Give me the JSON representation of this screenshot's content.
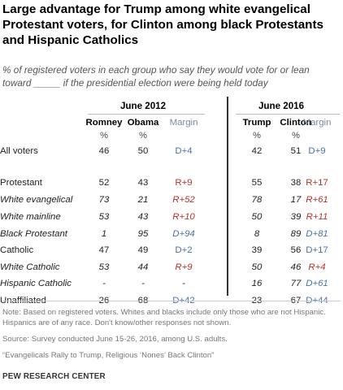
{
  "title": "Large advantage for Trump among white evangelical Protestant voters, for Clinton among black Protestants and Hispanic Catholics",
  "subtitle": "% of registered voters in each group who say they would vote for or lean toward _____ if the presidential election were being held today",
  "chart_data": {
    "type": "table",
    "years": [
      "June 2012",
      "June 2016"
    ],
    "columns": [
      {
        "label": "Romney",
        "unit": "%"
      },
      {
        "label": "Obama",
        "unit": "%"
      },
      {
        "label": "Margin",
        "unit": ""
      },
      {
        "label": "Trump",
        "unit": "%"
      },
      {
        "label": "Clinton",
        "unit": "%"
      },
      {
        "label": "Margin",
        "unit": ""
      }
    ],
    "rows": [
      {
        "label": "All voters",
        "italic": false,
        "values": [
          "46",
          "50",
          "D+4",
          "42",
          "51",
          "D+9"
        ]
      },
      {
        "label": "Protestant",
        "italic": false,
        "values": [
          "52",
          "43",
          "R+9",
          "55",
          "38",
          "R+17"
        ]
      },
      {
        "label": "White evangelical",
        "italic": true,
        "values": [
          "73",
          "21",
          "R+52",
          "78",
          "17",
          "R+61"
        ]
      },
      {
        "label": "White mainline",
        "italic": true,
        "values": [
          "53",
          "43",
          "R+10",
          "50",
          "39",
          "R+11"
        ]
      },
      {
        "label": "Black Protestant",
        "italic": true,
        "values": [
          "1",
          "95",
          "D+94",
          "8",
          "89",
          "D+81"
        ]
      },
      {
        "label": "Catholic",
        "italic": false,
        "values": [
          "47",
          "49",
          "D+2",
          "39",
          "56",
          "D+17"
        ]
      },
      {
        "label": "White Catholic",
        "italic": true,
        "values": [
          "53",
          "44",
          "R+9",
          "50",
          "46",
          "R+4"
        ]
      },
      {
        "label": "Hispanic Catholic",
        "italic": true,
        "values": [
          "-",
          "-",
          "-",
          "16",
          "77",
          "D+61"
        ]
      },
      {
        "label": "Unaffiliated",
        "italic": false,
        "values": [
          "26",
          "68",
          "D+42",
          "23",
          "67",
          "D+44"
        ]
      }
    ]
  },
  "notes": {
    "note": "Note: Based on registered voters. Whites and blacks include only those who are not Hispanic. Hispanics are of any race. Don't know/other responses not shown.",
    "source": "Source: Survey conducted June 15-26, 2016, among U.S. adults.",
    "report": "“Evangelicals Rally to Trump, Religious ‘Nones’ Back Clinton”",
    "credit": "PEW RESEARCH CENTER"
  },
  "colors": {
    "democrat": "#4a72a8",
    "republican": "#b8322a",
    "margin_header": "#7a8b9c"
  }
}
